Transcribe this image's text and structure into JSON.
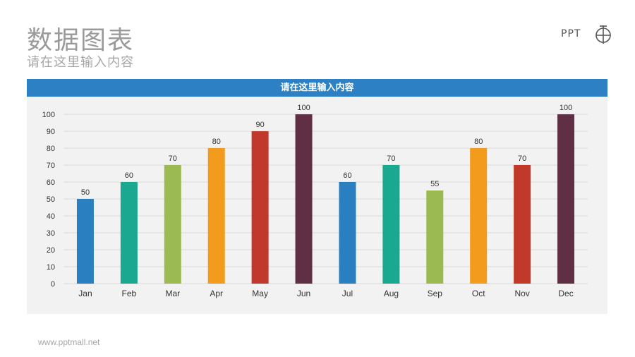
{
  "page": {
    "title": "数据图表",
    "subtitle": "请在这里输入内容",
    "logo_text": "PPT",
    "footer": "www.pptmall.net"
  },
  "chart_data": {
    "type": "bar",
    "title": "请在这里输入内容",
    "xlabel": "",
    "ylabel": "",
    "categories": [
      "Jan",
      "Feb",
      "Mar",
      "Apr",
      "May",
      "Jun",
      "Jul",
      "Aug",
      "Sep",
      "Oct",
      "Nov",
      "Dec"
    ],
    "values": [
      50,
      60,
      70,
      80,
      90,
      100,
      60,
      70,
      55,
      80,
      70,
      100
    ],
    "colors": [
      "#2a7fc0",
      "#1aa890",
      "#9bba52",
      "#f29b1d",
      "#c0392b",
      "#612f45",
      "#2a7fc0",
      "#1aa890",
      "#9bba52",
      "#f29b1d",
      "#c0392b",
      "#612f45"
    ],
    "ylim": [
      0,
      100
    ],
    "yticks": [
      0,
      10,
      20,
      30,
      40,
      50,
      60,
      70,
      80,
      90,
      100
    ],
    "grid": true,
    "legend": "none",
    "data_labels": true
  }
}
